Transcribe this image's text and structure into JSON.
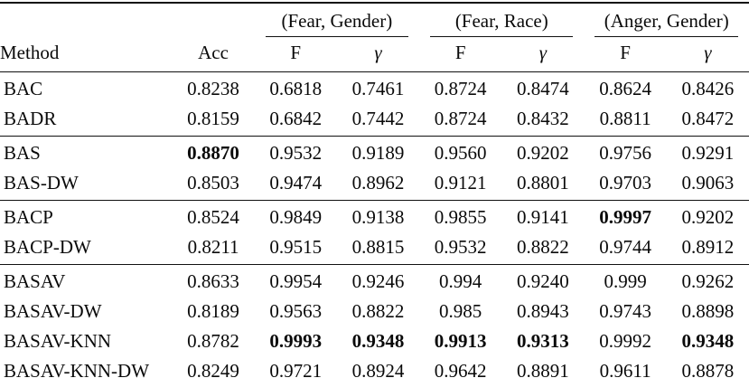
{
  "table": {
    "group_headers": [
      "(Fear, Gender)",
      "(Fear, Race)",
      "(Anger, Gender)"
    ],
    "column_headers": [
      "Method",
      "Acc",
      "F",
      "γ",
      "F",
      "γ",
      "F",
      "γ"
    ],
    "groups": [
      [
        {
          "method": "BAC",
          "values": [
            "0.8238",
            "0.6818",
            "0.7461",
            "0.8724",
            "0.8474",
            "0.8624",
            "0.8426"
          ],
          "bold_cols": []
        },
        {
          "method": "BADR",
          "values": [
            "0.8159",
            "0.6842",
            "0.7442",
            "0.8724",
            "0.8432",
            "0.8811",
            "0.8472"
          ],
          "bold_cols": []
        }
      ],
      [
        {
          "method": "BAS",
          "values": [
            "0.8870",
            "0.9532",
            "0.9189",
            "0.9560",
            "0.9202",
            "0.9756",
            "0.9291"
          ],
          "bold_cols": [
            0
          ]
        },
        {
          "method": "BAS-DW",
          "values": [
            "0.8503",
            "0.9474",
            "0.8962",
            "0.9121",
            "0.8801",
            "0.9703",
            "0.9063"
          ],
          "bold_cols": []
        }
      ],
      [
        {
          "method": "BACP",
          "values": [
            "0.8524",
            "0.9849",
            "0.9138",
            "0.9855",
            "0.9141",
            "0.9997",
            "0.9202"
          ],
          "bold_cols": [
            5
          ]
        },
        {
          "method": "BACP-DW",
          "values": [
            "0.8211",
            "0.9515",
            "0.8815",
            "0.9532",
            "0.8822",
            "0.9744",
            "0.8912"
          ],
          "bold_cols": []
        }
      ],
      [
        {
          "method": "BASAV",
          "values": [
            "0.8633",
            "0.9954",
            "0.9246",
            "0.994",
            "0.9240",
            "0.999",
            "0.9262"
          ],
          "bold_cols": []
        },
        {
          "method": "BASAV-DW",
          "values": [
            "0.8189",
            "0.9563",
            "0.8822",
            "0.985",
            "0.8943",
            "0.9743",
            "0.8898"
          ],
          "bold_cols": []
        },
        {
          "method": "BASAV-KNN",
          "values": [
            "0.8782",
            "0.9993",
            "0.9348",
            "0.9913",
            "0.9313",
            "0.9992",
            "0.9348"
          ],
          "bold_cols": [
            1,
            2,
            3,
            4,
            6
          ]
        },
        {
          "method": "BASAV-KNN-DW",
          "values": [
            "0.8249",
            "0.9721",
            "0.8924",
            "0.9642",
            "0.8891",
            "0.9611",
            "0.8878"
          ],
          "bold_cols": []
        }
      ]
    ]
  }
}
